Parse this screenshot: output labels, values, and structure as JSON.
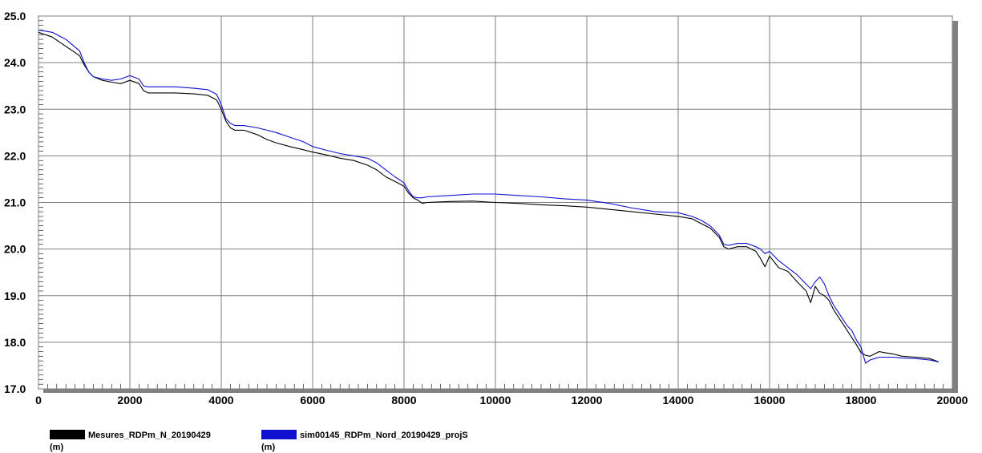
{
  "chart_data": {
    "type": "line",
    "title": "",
    "xlabel": "",
    "ylabel": "",
    "xlim": [
      0,
      20000
    ],
    "ylim": [
      17.0,
      25.0
    ],
    "x_ticks": [
      0,
      2000,
      4000,
      6000,
      8000,
      10000,
      12000,
      14000,
      16000,
      18000,
      20000
    ],
    "y_ticks": [
      17.0,
      18.0,
      19.0,
      20.0,
      21.0,
      22.0,
      23.0,
      24.0,
      25.0
    ],
    "x_tick_labels": [
      "0",
      "2000",
      "4000",
      "6000",
      "8000",
      "10000",
      "12000",
      "14000",
      "16000",
      "18000",
      "20000"
    ],
    "y_tick_labels": [
      "17.0",
      "18.0",
      "19.0",
      "20.0",
      "21.0",
      "22.0",
      "23.0",
      "24.0",
      "25.0"
    ],
    "grid": true,
    "legend_position": "bottom-left",
    "series": [
      {
        "name": "Mesures_RDPm_N_20190429",
        "unit": "(m)",
        "color": "#000000",
        "x": [
          0,
          300,
          600,
          900,
          1000,
          1100,
          1200,
          1400,
          1600,
          1800,
          2000,
          2200,
          2300,
          2400,
          2600,
          3000,
          3400,
          3700,
          3900,
          4000,
          4100,
          4200,
          4300,
          4500,
          4800,
          5000,
          5200,
          5500,
          5800,
          6000,
          6300,
          6600,
          6900,
          7200,
          7400,
          7600,
          7800,
          8000,
          8100,
          8200,
          8300,
          8400,
          8500,
          9000,
          9500,
          10000,
          10500,
          11000,
          11500,
          12000,
          12500,
          13000,
          13500,
          14000,
          14300,
          14500,
          14700,
          14900,
          15000,
          15100,
          15300,
          15500,
          15700,
          15800,
          15900,
          16000,
          16200,
          16400,
          16600,
          16800,
          16900,
          17000,
          17100,
          17200,
          17300,
          17400,
          17500,
          17600,
          17700,
          17800,
          17900,
          18000,
          18100,
          18200,
          18300,
          18400,
          18500,
          18700,
          18900,
          19200,
          19500,
          19700
        ],
        "y": [
          24.65,
          24.55,
          24.35,
          24.15,
          23.95,
          23.8,
          23.7,
          23.62,
          23.58,
          23.55,
          23.62,
          23.55,
          23.4,
          23.35,
          23.35,
          23.35,
          23.33,
          23.3,
          23.2,
          23.0,
          22.75,
          22.6,
          22.55,
          22.55,
          22.45,
          22.35,
          22.28,
          22.2,
          22.13,
          22.08,
          22.02,
          21.95,
          21.9,
          21.8,
          21.7,
          21.55,
          21.45,
          21.35,
          21.2,
          21.1,
          21.05,
          20.98,
          21.0,
          21.02,
          21.03,
          21.0,
          20.98,
          20.95,
          20.93,
          20.9,
          20.85,
          20.8,
          20.75,
          20.7,
          20.65,
          20.55,
          20.45,
          20.25,
          20.05,
          20.0,
          20.05,
          20.05,
          19.95,
          19.8,
          19.62,
          19.85,
          19.6,
          19.52,
          19.3,
          19.1,
          18.85,
          19.2,
          19.05,
          19.0,
          18.9,
          18.7,
          18.55,
          18.4,
          18.25,
          18.1,
          17.95,
          17.78,
          17.72,
          17.7,
          17.75,
          17.8,
          17.78,
          17.75,
          17.7,
          17.68,
          17.65,
          17.58
        ]
      },
      {
        "name": "sim00145_RDPm_Nord_20190429_projS",
        "unit": "(m)",
        "color": "#1010d0",
        "x": [
          0,
          300,
          600,
          900,
          1000,
          1100,
          1200,
          1400,
          1600,
          1800,
          2000,
          2200,
          2300,
          2400,
          2600,
          3000,
          3400,
          3700,
          3900,
          4000,
          4100,
          4200,
          4300,
          4500,
          4800,
          5000,
          5200,
          5500,
          5800,
          6000,
          6300,
          6600,
          6900,
          7200,
          7400,
          7600,
          7800,
          8000,
          8100,
          8200,
          8300,
          8400,
          8500,
          9000,
          9500,
          10000,
          10500,
          11000,
          11500,
          12000,
          12500,
          13000,
          13500,
          14000,
          14300,
          14500,
          14700,
          14900,
          15000,
          15100,
          15300,
          15500,
          15700,
          15800,
          15900,
          16000,
          16200,
          16400,
          16600,
          16800,
          16900,
          17000,
          17100,
          17200,
          17300,
          17400,
          17500,
          17600,
          17700,
          17800,
          17900,
          18000,
          18100,
          18200,
          18300,
          18400,
          18500,
          18700,
          18900,
          19200,
          19500,
          19700
        ],
        "y": [
          24.7,
          24.65,
          24.5,
          24.25,
          24.0,
          23.8,
          23.7,
          23.65,
          23.62,
          23.65,
          23.72,
          23.65,
          23.5,
          23.48,
          23.48,
          23.48,
          23.45,
          23.42,
          23.32,
          23.1,
          22.8,
          22.7,
          22.65,
          22.65,
          22.6,
          22.55,
          22.5,
          22.4,
          22.3,
          22.2,
          22.12,
          22.05,
          22.0,
          21.95,
          21.85,
          21.7,
          21.55,
          21.42,
          21.25,
          21.12,
          21.1,
          21.1,
          21.12,
          21.15,
          21.18,
          21.18,
          21.15,
          21.12,
          21.08,
          21.05,
          20.98,
          20.88,
          20.8,
          20.78,
          20.7,
          20.62,
          20.5,
          20.3,
          20.1,
          20.08,
          20.12,
          20.12,
          20.05,
          20.0,
          19.9,
          19.95,
          19.75,
          19.6,
          19.45,
          19.25,
          19.15,
          19.3,
          19.4,
          19.25,
          19.0,
          18.8,
          18.65,
          18.5,
          18.35,
          18.25,
          18.05,
          17.9,
          17.55,
          17.62,
          17.65,
          17.68,
          17.68,
          17.68,
          17.66,
          17.65,
          17.62,
          17.58
        ]
      }
    ]
  }
}
